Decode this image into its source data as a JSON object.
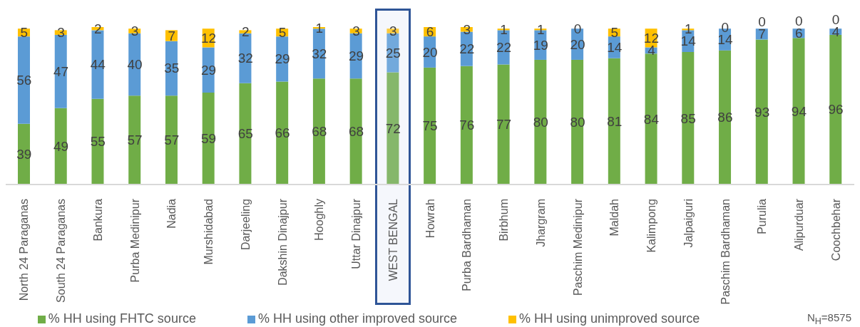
{
  "chart_data": {
    "type": "bar",
    "stacked": true,
    "data_labels": true,
    "legend": "bottom",
    "tick_labels": "x",
    "ylim": [
      0,
      101
    ],
    "categories": [
      "North 24 Paraganas",
      "South 24 Paraganas",
      "Bankura",
      "Purba Medinipur",
      "Nadia",
      "Murshidabad",
      "Darjeeling",
      "Dakshin Dinajpur",
      "Hooghly",
      "Uttar Dinajpur",
      "WEST BENGAL",
      "Howrah",
      "Purba Bardhaman",
      "Birbhum",
      "Jhargram",
      "Paschim Medinipur",
      "Maldah",
      "Kalimpong",
      "Jalpaiguri",
      "Paschim Bardhaman",
      "Purulia",
      "Alipurduar",
      "Coochbehar"
    ],
    "series": [
      {
        "name": "% HH using FHTC source",
        "color": "#70ad47",
        "colors": [
          "#70ad47",
          "#70ad47",
          "#70ad47",
          "#70ad47",
          "#70ad47",
          "#70ad47",
          "#70ad47",
          "#70ad47",
          "#70ad47",
          "#70ad47",
          "#85b76a",
          "#70ad47",
          "#70ad47",
          "#70ad47",
          "#70ad47",
          "#70ad47",
          "#70ad47",
          "#70ad47",
          "#70ad47",
          "#70ad47",
          "#70ad47",
          "#70ad47",
          "#70ad47"
        ],
        "values": [
          39,
          49,
          55,
          57,
          57,
          59,
          65,
          66,
          68,
          68,
          72,
          75,
          76,
          77,
          80,
          80,
          81,
          84,
          85,
          86,
          93,
          94,
          96
        ]
      },
      {
        "name": "% HH using other improved source",
        "color": "#5b9bd5",
        "colors": [
          "#5b9bd5",
          "#5b9bd5",
          "#5b9bd5",
          "#5b9bd5",
          "#5b9bd5",
          "#5b9bd5",
          "#5b9bd5",
          "#5b9bd5",
          "#5b9bd5",
          "#5b9bd5",
          "#72a9dc",
          "#5b9bd5",
          "#5b9bd5",
          "#5b9bd5",
          "#5b9bd5",
          "#5b9bd5",
          "#5b9bd5",
          "#5b9bd5",
          "#5b9bd5",
          "#5b9bd5",
          "#5b9bd5",
          "#5b9bd5",
          "#5b9bd5"
        ],
        "values": [
          56,
          47,
          44,
          40,
          35,
          29,
          32,
          29,
          32,
          29,
          25,
          20,
          22,
          22,
          19,
          20,
          14,
          4,
          14,
          14,
          7,
          6,
          4
        ]
      },
      {
        "name": "% HH using unimproved source",
        "color": "#ffc000",
        "colors": [
          "#ffc000",
          "#ffc000",
          "#ffc000",
          "#ffc000",
          "#ffc000",
          "#ffc000",
          "#ffc000",
          "#ffc000",
          "#ffc000",
          "#ffc000",
          "#fbc93a",
          "#ffc000",
          "#ffc000",
          "#ffc000",
          "#ffc000",
          "#ffc000",
          "#ffc000",
          "#ffc000",
          "#ffc000",
          "#ffc000",
          "#ffc000",
          "#ffc000",
          "#ffc000"
        ],
        "values": [
          5,
          3,
          2,
          3,
          7,
          12,
          2,
          5,
          1,
          3,
          3,
          6,
          3,
          1,
          1,
          0,
          5,
          12,
          1,
          0,
          0,
          0,
          0
        ]
      }
    ],
    "bands": [
      {
        "axis": "x",
        "from": "WEST BENGAL",
        "to": "WEST BENGAL",
        "color": "#2f5597"
      }
    ],
    "annotations": [
      "N$_{H}$=8575"
    ]
  }
}
